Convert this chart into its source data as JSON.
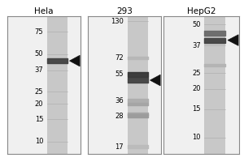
{
  "bg_color": "#ffffff",
  "panel_bg": "#f0f0f0",
  "lane_color": "#c8c8c8",
  "divider_color": "#888888",
  "panels": [
    {
      "title": "Hela",
      "markers": [
        75,
        50,
        37,
        25,
        20,
        15,
        10
      ],
      "mw_range_log": [
        0.9,
        2.0
      ],
      "band_arrow_mw": 44,
      "main_bands": [
        {
          "mw": 44,
          "darkness": 0.82
        }
      ],
      "ladder_bands": []
    },
    {
      "title": "293",
      "markers": [
        130,
        72,
        55,
        36,
        28,
        17
      ],
      "mw_range_log": [
        1.18,
        2.15
      ],
      "band_arrow_mw": 50,
      "main_bands": [
        {
          "mw": 55,
          "darkness": 0.88
        },
        {
          "mw": 50,
          "darkness": 0.82
        }
      ],
      "ladder_bands": [
        {
          "mw": 72,
          "darkness": 0.4
        },
        {
          "mw": 36,
          "darkness": 0.45
        },
        {
          "mw": 34,
          "darkness": 0.5
        },
        {
          "mw": 29,
          "darkness": 0.5
        },
        {
          "mw": 28,
          "darkness": 0.55
        },
        {
          "mw": 17,
          "darkness": 0.38
        }
      ]
    },
    {
      "title": "HepG2",
      "markers": [
        50,
        37,
        25,
        20,
        15,
        10
      ],
      "mw_range_log": [
        0.9,
        1.75
      ],
      "band_arrow_mw": 40,
      "main_bands": [
        {
          "mw": 44,
          "darkness": 0.65
        },
        {
          "mw": 40,
          "darkness": 0.82
        }
      ],
      "ladder_bands": [
        {
          "mw": 28,
          "darkness": 0.42
        }
      ]
    }
  ],
  "title_fontsize": 7.5,
  "marker_fontsize": 6.0,
  "arrow_color": "#111111"
}
